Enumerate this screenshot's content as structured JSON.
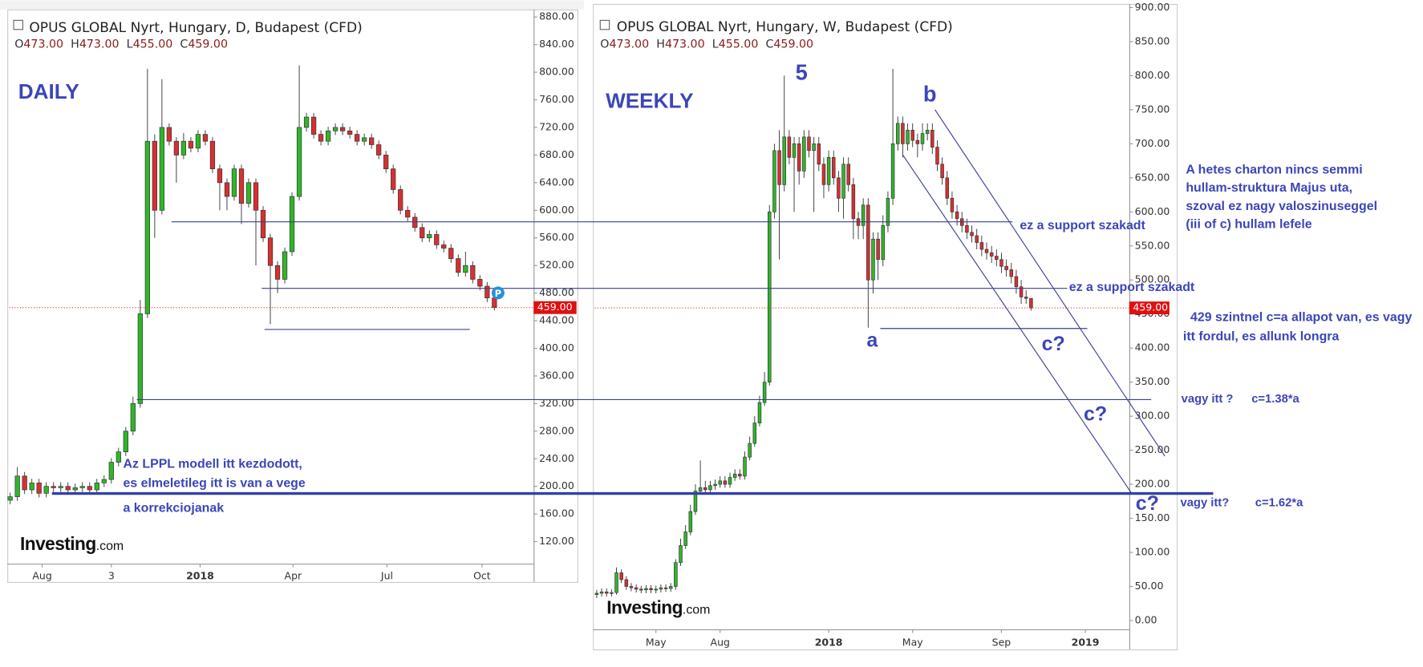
{
  "chart_data": [
    {
      "type": "candlestick",
      "title": "OPUS GLOBAL Nyrt, Hungary, D, Budapest (CFD)",
      "ohlc_header": [
        {
          "key": "O",
          "value": "473.00"
        },
        {
          "key": "H",
          "value": "473.00"
        },
        {
          "key": "L",
          "value": "455.00"
        },
        {
          "key": "C",
          "value": "459.00"
        }
      ],
      "up_color": "#2fb62a",
      "down_color": "#d53033",
      "ylim": [
        88,
        891
      ],
      "yticks": [
        {
          "value": 120,
          "label": "120.00"
        },
        {
          "value": 160,
          "label": "160.00"
        },
        {
          "value": 200,
          "label": "200.00"
        },
        {
          "value": 240,
          "label": "240.00"
        },
        {
          "value": 280,
          "label": "280.00"
        },
        {
          "value": 320,
          "label": "320.00"
        },
        {
          "value": 360,
          "label": "360.00"
        },
        {
          "value": 400,
          "label": "400.00"
        },
        {
          "value": 440,
          "label": "440.00"
        },
        {
          "value": 480,
          "label": "480.00"
        },
        {
          "value": 520,
          "label": "520.00"
        },
        {
          "value": 560,
          "label": "560.00"
        },
        {
          "value": 600,
          "label": "600.00"
        },
        {
          "value": 640,
          "label": "640.00"
        },
        {
          "value": 680,
          "label": "680.00"
        },
        {
          "value": 720,
          "label": "720.00"
        },
        {
          "value": 760,
          "label": "760.00"
        },
        {
          "value": 800,
          "label": "800.00"
        },
        {
          "value": 840,
          "label": "840.00"
        },
        {
          "value": 880,
          "label": "880.00"
        }
      ],
      "xlim": [
        -1,
        507
      ],
      "xticks": [
        {
          "value": 31,
          "label": "Aug"
        },
        {
          "value": 98,
          "label": "3"
        },
        {
          "value": 184,
          "label": "2018"
        },
        {
          "value": 274,
          "label": "Apr"
        },
        {
          "value": 365,
          "label": "Jul"
        },
        {
          "value": 457,
          "label": "Oct"
        }
      ],
      "grid": false,
      "last_price_label": "459.00",
      "x": [
        0,
        7,
        14,
        21,
        28,
        35,
        42,
        49,
        56,
        63,
        70,
        77,
        84,
        91,
        98,
        105,
        112,
        119,
        126,
        133,
        140,
        147,
        154,
        161,
        168,
        175,
        182,
        189,
        196,
        203,
        210,
        217,
        224,
        231,
        238,
        245,
        252,
        259,
        266,
        273,
        280,
        287,
        294,
        301,
        308,
        315,
        322,
        329,
        336,
        343,
        350,
        357,
        364,
        371,
        378,
        385,
        392,
        399,
        406,
        413,
        420,
        427,
        434,
        441,
        448,
        455,
        462,
        469
      ],
      "open": [
        180,
        185,
        215,
        195,
        205,
        190,
        200,
        198,
        200,
        195,
        198,
        200,
        195,
        205,
        210,
        235,
        250,
        280,
        320,
        450,
        700,
        600,
        720,
        700,
        680,
        700,
        690,
        710,
        700,
        660,
        640,
        620,
        660,
        610,
        640,
        600,
        560,
        520,
        500,
        540,
        620,
        720,
        735,
        710,
        700,
        715,
        720,
        715,
        710,
        700,
        705,
        695,
        680,
        660,
        630,
        600,
        590,
        575,
        560,
        565,
        550,
        545,
        530,
        510,
        520,
        500,
        490,
        473
      ],
      "high": [
        191,
        228,
        221,
        211,
        211,
        206,
        206,
        206,
        206,
        204,
        206,
        206,
        211,
        216,
        241,
        256,
        286,
        330,
        470,
        805,
        710,
        790,
        726,
        706,
        712,
        706,
        716,
        716,
        706,
        666,
        646,
        666,
        666,
        646,
        646,
        606,
        566,
        526,
        546,
        626,
        810,
        741,
        741,
        716,
        721,
        726,
        726,
        721,
        716,
        711,
        711,
        701,
        686,
        666,
        636,
        606,
        596,
        581,
        571,
        571,
        556,
        551,
        536,
        540,
        526,
        506,
        496,
        473
      ],
      "low": [
        174,
        179,
        189,
        189,
        184,
        184,
        192,
        192,
        189,
        189,
        192,
        189,
        189,
        199,
        204,
        229,
        244,
        274,
        314,
        444,
        560,
        594,
        694,
        640,
        674,
        684,
        684,
        694,
        654,
        600,
        600,
        614,
        580,
        604,
        520,
        554,
        435,
        480,
        494,
        534,
        614,
        714,
        704,
        694,
        694,
        709,
        709,
        704,
        694,
        694,
        689,
        674,
        654,
        624,
        594,
        584,
        569,
        554,
        554,
        544,
        539,
        524,
        504,
        504,
        494,
        484,
        467,
        455
      ],
      "close": [
        185,
        215,
        195,
        205,
        190,
        200,
        198,
        200,
        195,
        198,
        200,
        195,
        205,
        210,
        235,
        250,
        280,
        320,
        450,
        700,
        600,
        720,
        700,
        680,
        700,
        690,
        710,
        700,
        660,
        640,
        620,
        660,
        610,
        640,
        600,
        560,
        520,
        500,
        540,
        620,
        720,
        735,
        710,
        700,
        715,
        720,
        715,
        710,
        700,
        705,
        695,
        680,
        660,
        630,
        600,
        590,
        575,
        560,
        565,
        550,
        545,
        530,
        510,
        520,
        500,
        490,
        473,
        459
      ],
      "annotations": [
        "DAILY",
        "Az LPPL modell itt kezdodott,",
        "es elmeletileg itt is van a vege",
        "a korrekciojanak"
      ],
      "logo": [
        "Investing",
        ".com"
      ]
    },
    {
      "type": "candlestick",
      "title": "OPUS GLOBAL Nyrt, Hungary, W, Budapest (CFD)",
      "ohlc_header": [
        {
          "key": "O",
          "value": "473.00"
        },
        {
          "key": "H",
          "value": "473.00"
        },
        {
          "key": "L",
          "value": "455.00"
        },
        {
          "key": "C",
          "value": "459.00"
        }
      ],
      "up_color": "#2fb62a",
      "down_color": "#d53033",
      "ylim": [
        -13,
        904
      ],
      "yticks": [
        {
          "value": 0,
          "label": "0.00"
        },
        {
          "value": 50,
          "label": "50.00"
        },
        {
          "value": 100,
          "label": "100.00"
        },
        {
          "value": 150,
          "label": "150.00"
        },
        {
          "value": 200,
          "label": "200.00"
        },
        {
          "value": 250,
          "label": "250.00"
        },
        {
          "value": 300,
          "label": "300.00"
        },
        {
          "value": 350,
          "label": "350.00"
        },
        {
          "value": 400,
          "label": "400.00"
        },
        {
          "value": 450,
          "label": "450.00"
        },
        {
          "value": 500,
          "label": "500.00"
        },
        {
          "value": 550,
          "label": "550.00"
        },
        {
          "value": 600,
          "label": "600.00"
        },
        {
          "value": 650,
          "label": "650.00"
        },
        {
          "value": 700,
          "label": "700.00"
        },
        {
          "value": 750,
          "label": "750.00"
        },
        {
          "value": 800,
          "label": "800.00"
        },
        {
          "value": 850,
          "label": "850.00"
        },
        {
          "value": 900,
          "label": "900.00"
        }
      ],
      "xlim": [
        -0.4,
        107.9
      ],
      "xticks": [
        {
          "value": 12,
          "label": "May"
        },
        {
          "value": 25,
          "label": "Aug"
        },
        {
          "value": 47,
          "label": "2018"
        },
        {
          "value": 64,
          "label": "May"
        },
        {
          "value": 82,
          "label": "Sep"
        },
        {
          "value": 99,
          "label": "2019"
        }
      ],
      "grid": false,
      "last_price_label": "459.00",
      "x": [
        0,
        1,
        2,
        3,
        4,
        5,
        6,
        7,
        8,
        9,
        10,
        11,
        12,
        13,
        14,
        15,
        16,
        17,
        18,
        19,
        20,
        21,
        22,
        23,
        24,
        25,
        26,
        27,
        28,
        29,
        30,
        31,
        32,
        33,
        34,
        35,
        36,
        37,
        38,
        39,
        40,
        41,
        42,
        43,
        44,
        45,
        46,
        47,
        48,
        49,
        50,
        51,
        52,
        53,
        54,
        55,
        56,
        57,
        58,
        59,
        60,
        61,
        62,
        63,
        64,
        65,
        66,
        67,
        68,
        69,
        70,
        71,
        72,
        73,
        74,
        75,
        76,
        77,
        78,
        79,
        80,
        81,
        82,
        83,
        84,
        85,
        86,
        87,
        88
      ],
      "open": [
        38,
        40,
        42,
        40,
        41,
        70,
        60,
        50,
        48,
        46,
        45,
        47,
        45,
        46,
        48,
        47,
        50,
        85,
        110,
        130,
        160,
        190,
        195,
        192,
        198,
        200,
        205,
        200,
        210,
        215,
        212,
        240,
        260,
        290,
        320,
        350,
        600,
        690,
        640,
        710,
        680,
        700,
        660,
        710,
        690,
        700,
        670,
        640,
        680,
        650,
        620,
        670,
        640,
        590,
        580,
        610,
        500,
        560,
        530,
        580,
        620,
        700,
        730,
        700,
        720,
        705,
        700,
        715,
        720,
        695,
        670,
        650,
        620,
        600,
        590,
        580,
        570,
        565,
        555,
        545,
        540,
        535,
        530,
        520,
        515,
        505,
        490,
        475,
        473
      ],
      "high": [
        45,
        47,
        47,
        46,
        78,
        75,
        65,
        55,
        53,
        51,
        52,
        52,
        51,
        53,
        53,
        55,
        90,
        120,
        140,
        170,
        200,
        235,
        205,
        205,
        207,
        212,
        212,
        217,
        222,
        222,
        248,
        270,
        300,
        330,
        365,
        610,
        700,
        720,
        800,
        720,
        710,
        710,
        720,
        720,
        710,
        710,
        680,
        690,
        690,
        660,
        680,
        680,
        650,
        600,
        620,
        620,
        570,
        570,
        595,
        630,
        810,
        740,
        740,
        730,
        730,
        715,
        730,
        730,
        730,
        705,
        680,
        660,
        630,
        610,
        600,
        590,
        580,
        575,
        565,
        555,
        550,
        545,
        540,
        530,
        525,
        515,
        500,
        485,
        473
      ],
      "low": [
        33,
        35,
        35,
        35,
        38,
        55,
        45,
        43,
        41,
        40,
        40,
        40,
        40,
        41,
        42,
        42,
        45,
        80,
        105,
        125,
        155,
        185,
        185,
        187,
        192,
        195,
        195,
        195,
        205,
        207,
        207,
        235,
        255,
        285,
        315,
        345,
        590,
        530,
        630,
        670,
        600,
        640,
        650,
        680,
        600,
        660,
        620,
        630,
        640,
        600,
        590,
        630,
        560,
        560,
        560,
        430,
        480,
        500,
        520,
        570,
        610,
        690,
        680,
        690,
        695,
        680,
        690,
        705,
        685,
        660,
        640,
        610,
        590,
        580,
        570,
        560,
        555,
        545,
        535,
        530,
        525,
        520,
        510,
        505,
        495,
        480,
        465,
        465,
        455
      ],
      "close": [
        40,
        42,
        40,
        41,
        70,
        60,
        50,
        48,
        46,
        45,
        47,
        45,
        46,
        48,
        47,
        50,
        85,
        110,
        130,
        160,
        190,
        195,
        192,
        198,
        200,
        205,
        200,
        210,
        215,
        212,
        240,
        260,
        290,
        320,
        350,
        600,
        690,
        640,
        710,
        680,
        700,
        660,
        710,
        690,
        700,
        670,
        640,
        680,
        650,
        620,
        670,
        640,
        590,
        580,
        610,
        500,
        560,
        530,
        580,
        620,
        700,
        730,
        700,
        720,
        705,
        700,
        715,
        720,
        695,
        670,
        650,
        620,
        600,
        590,
        580,
        570,
        565,
        555,
        545,
        540,
        535,
        530,
        520,
        515,
        505,
        490,
        475,
        473,
        459
      ],
      "annotations": [
        "WEEKLY",
        "5",
        "b",
        "a",
        "c?",
        "c?",
        "c?",
        "ez a support szakadt",
        "ez a support szakadt",
        "A hetes charton nincs semmi",
        "hullam-struktura Majus uta,",
        "szoval ez nagy valoszinuseggel",
        "(iii of c) hullam lefele",
        "429 szintnel c=a allapot van, es vagy",
        "itt fordul, es allunk longra",
        "vagy itt ?",
        "c=1.38*a",
        "vagy itt?",
        "c=1.62*a"
      ],
      "logo": [
        "Investing",
        ".com"
      ]
    }
  ]
}
